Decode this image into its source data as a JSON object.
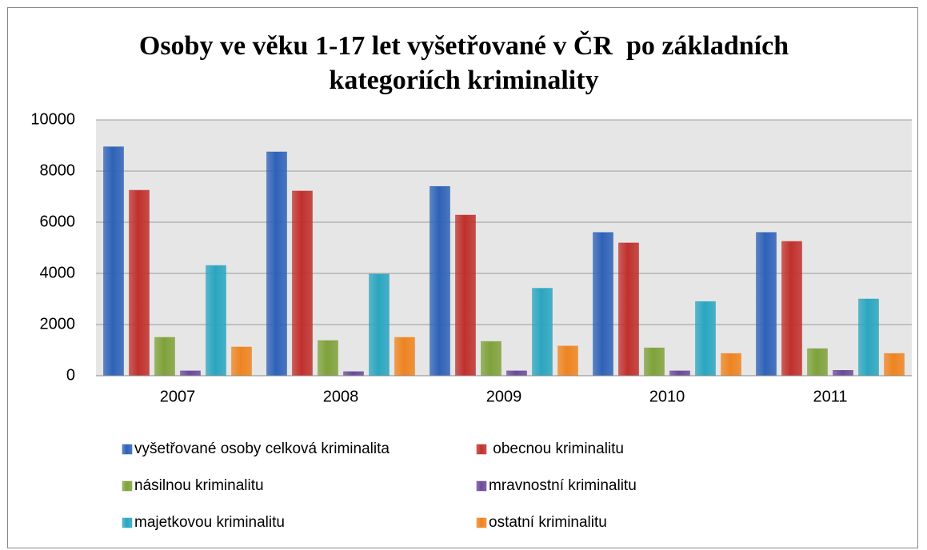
{
  "chart_data": {
    "type": "bar",
    "title": "Osoby ve věku 1-17 let vyšetřované v ČR  po základních kategoriích kriminality",
    "categories": [
      "2007",
      "2008",
      "2009",
      "2010",
      "2011"
    ],
    "series": [
      {
        "name": "vyšetřované osoby celková kriminalita",
        "color": "#2e62b8",
        "values": [
          8950,
          8750,
          7400,
          5600,
          5600
        ]
      },
      {
        "name": " obecnou kriminalitu",
        "color": "#c0302c",
        "values": [
          7250,
          7220,
          6280,
          5190,
          5250
        ]
      },
      {
        "name": "násilnou kriminalitu",
        "color": "#7fa23a",
        "values": [
          1500,
          1375,
          1340,
          1090,
          1060
        ]
      },
      {
        "name": "mravnostní kriminalitu",
        "color": "#6a4a9a",
        "values": [
          190,
          160,
          190,
          190,
          210
        ]
      },
      {
        "name": "majetkovou kriminalitu",
        "color": "#2aa6c0",
        "values": [
          4310,
          3970,
          3420,
          2900,
          3000
        ]
      },
      {
        "name": "ostatní kriminalitu",
        "color": "#ee8420",
        "values": [
          1125,
          1500,
          1160,
          870,
          870
        ]
      }
    ],
    "ylim": [
      0,
      10000
    ],
    "yticks": [
      0,
      2000,
      4000,
      6000,
      8000,
      10000
    ],
    "grid": true
  }
}
